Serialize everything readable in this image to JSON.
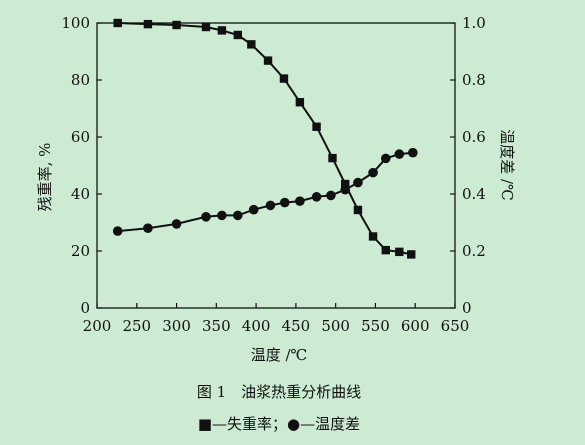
{
  "chart_data": {
    "type": "line",
    "caption": "图 1　油浆热重分析曲线",
    "legend_text": "■—失重率；●—温度差",
    "x_axis": {
      "label": "温度 /℃",
      "min": 200,
      "max": 650,
      "ticks": [
        200,
        250,
        300,
        350,
        400,
        450,
        500,
        550,
        600,
        650
      ],
      "tick_labels": [
        "200",
        "250",
        "300",
        "350",
        "400",
        "450",
        "500",
        "550",
        "600",
        "650"
      ]
    },
    "y_left": {
      "label": "残重率, %",
      "min": 0,
      "max": 100,
      "ticks": [
        0,
        20,
        40,
        60,
        80,
        100
      ],
      "tick_labels": [
        "0",
        "20",
        "40",
        "60",
        "80",
        "100"
      ]
    },
    "y_right": {
      "label": "温度差 /℃",
      "min": 0,
      "max": 1.0,
      "ticks": [
        0,
        0.2,
        0.4,
        0.6,
        0.8,
        1.0
      ],
      "tick_labels": [
        "0",
        "0.2",
        "0.4",
        "0.6",
        "0.8",
        "1.0"
      ]
    },
    "series": [
      {
        "name": "失重率",
        "axis": "left",
        "marker": "square",
        "x": [
          226,
          264,
          300,
          337,
          357,
          377,
          394,
          415,
          435,
          455,
          476,
          496,
          512,
          528,
          547,
          563,
          580,
          595
        ],
        "y": [
          100,
          99.6,
          99.3,
          98.6,
          97.4,
          95.8,
          92.5,
          86.8,
          80.5,
          72.2,
          63.6,
          52.6,
          43.5,
          34.4,
          25.1,
          20.3,
          19.7,
          18.8
        ]
      },
      {
        "name": "温度差",
        "axis": "right",
        "marker": "circle",
        "x": [
          226,
          264,
          300,
          337,
          357,
          377,
          397,
          418,
          436,
          455,
          476,
          494,
          512,
          528,
          547,
          563,
          580,
          597
        ],
        "y": [
          0.27,
          0.28,
          0.295,
          0.32,
          0.325,
          0.325,
          0.345,
          0.36,
          0.37,
          0.375,
          0.39,
          0.395,
          0.415,
          0.44,
          0.475,
          0.525,
          0.54,
          0.545
        ]
      }
    ]
  }
}
